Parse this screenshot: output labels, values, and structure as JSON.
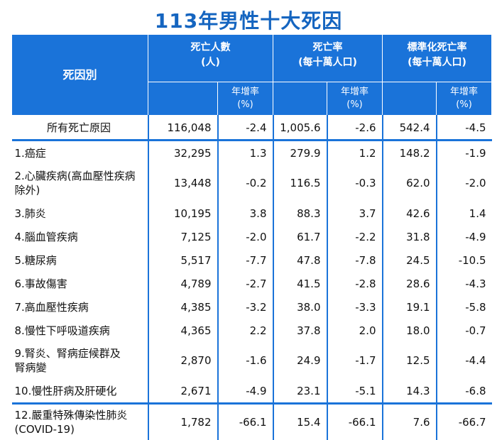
{
  "title": "113年男性十大死因",
  "header": {
    "cause": "死因別",
    "deaths": "死亡人數",
    "deaths_unit": "(人)",
    "rate": "死亡率",
    "rate_unit": "(每十萬人口)",
    "std_rate": "標準化死亡率",
    "std_rate_unit": "(每十萬人口)",
    "growth": "年增率",
    "growth_unit": "(%)"
  },
  "total": {
    "cause": "所有死亡原因",
    "deaths": "116,048",
    "deaths_growth": "-2.4",
    "rate": "1,005.6",
    "rate_growth": "-2.6",
    "std_rate": "542.4",
    "std_growth": "-4.5"
  },
  "rows": [
    {
      "cause": "1.癌症",
      "deaths": "32,295",
      "deaths_growth": "1.3",
      "rate": "279.9",
      "rate_growth": "1.2",
      "std_rate": "148.2",
      "std_growth": "-1.9"
    },
    {
      "cause": "2.心臟疾病(高血壓性疾病除外)",
      "deaths": "13,448",
      "deaths_growth": "-0.2",
      "rate": "116.5",
      "rate_growth": "-0.3",
      "std_rate": "62.0",
      "std_growth": "-2.0"
    },
    {
      "cause": "3.肺炎",
      "deaths": "10,195",
      "deaths_growth": "3.8",
      "rate": "88.3",
      "rate_growth": "3.7",
      "std_rate": "42.6",
      "std_growth": "1.4"
    },
    {
      "cause": "4.腦血管疾病",
      "deaths": "7,125",
      "deaths_growth": "-2.0",
      "rate": "61.7",
      "rate_growth": "-2.2",
      "std_rate": "31.8",
      "std_growth": "-4.9"
    },
    {
      "cause": "5.糖尿病",
      "deaths": "5,517",
      "deaths_growth": "-7.7",
      "rate": "47.8",
      "rate_growth": "-7.8",
      "std_rate": "24.5",
      "std_growth": "-10.5"
    },
    {
      "cause": "6.事故傷害",
      "deaths": "4,789",
      "deaths_growth": "-2.7",
      "rate": "41.5",
      "rate_growth": "-2.8",
      "std_rate": "28.6",
      "std_growth": "-4.3"
    },
    {
      "cause": "7.高血壓性疾病",
      "deaths": "4,385",
      "deaths_growth": "-3.2",
      "rate": "38.0",
      "rate_growth": "-3.3",
      "std_rate": "19.1",
      "std_growth": "-5.8"
    },
    {
      "cause": "8.慢性下呼吸道疾病",
      "deaths": "4,365",
      "deaths_growth": "2.2",
      "rate": "37.8",
      "rate_growth": "2.0",
      "std_rate": "18.0",
      "std_growth": "-0.7"
    },
    {
      "cause": "9.腎炎、腎病症候群及腎病變",
      "deaths": "2,870",
      "deaths_growth": "-1.6",
      "rate": "24.9",
      "rate_growth": "-1.7",
      "std_rate": "12.5",
      "std_growth": "-4.4"
    },
    {
      "cause": "10.慢性肝病及肝硬化",
      "deaths": "2,671",
      "deaths_growth": "-4.9",
      "rate": "23.1",
      "rate_growth": "-5.1",
      "std_rate": "14.3",
      "std_growth": "-6.8"
    }
  ],
  "extra": {
    "cause": "12.嚴重特殊傳染性肺炎(COVID-19)",
    "deaths": "1,782",
    "deaths_growth": "-66.1",
    "rate": "15.4",
    "rate_growth": "-66.1",
    "std_rate": "7.6",
    "std_growth": "-66.7"
  }
}
